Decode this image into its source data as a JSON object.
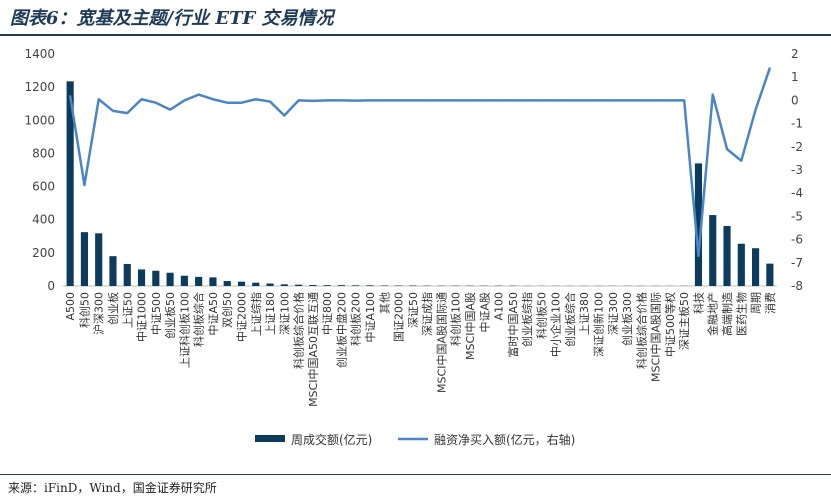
{
  "header": {
    "title": "图表6：宽基及主题/行业 ETF 交易情况"
  },
  "footer": {
    "source": "来源：iFinD，Wind，国金证券研究所"
  },
  "colors": {
    "bar": "#0d3b5e",
    "line": "#4a86c5",
    "axis": "#bfbfbf",
    "border": "#1f3b57"
  },
  "chart_data": {
    "type": "bar+line",
    "title": "宽基及主题/行业 ETF 交易情况",
    "categories": [
      "A500",
      "科创50",
      "沪深300",
      "创业板",
      "上证50",
      "中证1000",
      "中证500",
      "创业板50",
      "上证科创板100",
      "科创板综合",
      "中证A50",
      "双创50",
      "中证2000",
      "上证综指",
      "上证180",
      "深证100",
      "科创板综合价格",
      "MSCI中国A50互联互通",
      "中证800",
      "创业板中盘200",
      "科创板200",
      "中证A100",
      "其他",
      "国证2000",
      "深证50",
      "深证成指",
      "MSCI中国A股国际通",
      "科创板100",
      "MSCI中国A股",
      "中证A股",
      "A100",
      "富时中国A50",
      "创业板综指",
      "科创板50",
      "中小企业100",
      "创业板综合",
      "上证380",
      "深证创新100",
      "深证300",
      "创业板300",
      "科创板综合价格",
      "MSCI中国A股国际",
      "中证500等权",
      "深证主板50",
      "科技",
      "金融地产",
      "高端制造",
      "医药生物",
      "周期",
      "消费"
    ],
    "series": [
      {
        "name": "周成交额(亿元)",
        "type": "bar",
        "axis": "left",
        "values": [
          1235,
          325,
          318,
          180,
          133,
          100,
          92,
          80,
          62,
          55,
          52,
          30,
          26,
          20,
          15,
          10,
          8,
          6,
          5,
          5,
          4,
          4,
          3,
          3,
          3,
          2,
          2,
          2,
          2,
          2,
          2,
          2,
          1,
          1,
          1,
          1,
          1,
          1,
          1,
          1,
          1,
          1,
          1,
          1,
          740,
          428,
          362,
          255,
          228,
          135
        ]
      },
      {
        "name": "融资净买入额(亿元，右轴)",
        "type": "line",
        "axis": "right",
        "values": [
          0.2,
          -3.65,
          0.05,
          -0.45,
          -0.55,
          0.05,
          -0.1,
          -0.4,
          0.0,
          0.25,
          0.05,
          -0.1,
          -0.1,
          0.05,
          -0.05,
          -0.65,
          0.0,
          -0.02,
          0.0,
          0.0,
          -0.01,
          0.0,
          0.0,
          0.0,
          0.0,
          0.0,
          0.0,
          0.0,
          0.0,
          0.0,
          0.0,
          0.0,
          0.0,
          0.0,
          0.0,
          0.0,
          0.0,
          0.0,
          0.0,
          0.0,
          0.0,
          0.0,
          0.0,
          0.0,
          -6.7,
          0.25,
          -2.1,
          -2.6,
          -0.4,
          1.4
        ]
      }
    ],
    "y_left": {
      "min": 0,
      "max": 1400,
      "ticks": [
        "0",
        "200",
        "400",
        "600",
        "800",
        "1000",
        "1200",
        "1400"
      ]
    },
    "y_right": {
      "min": -8,
      "max": 2,
      "ticks": [
        "-8",
        "-7",
        "-6",
        "-5",
        "-4",
        "-3",
        "-2",
        "-1",
        "0",
        "1",
        "2"
      ]
    },
    "legend": {
      "position": "bottom",
      "items": [
        "周成交额(亿元)",
        "融资净买入额(亿元，右轴)"
      ]
    },
    "grid": false
  }
}
